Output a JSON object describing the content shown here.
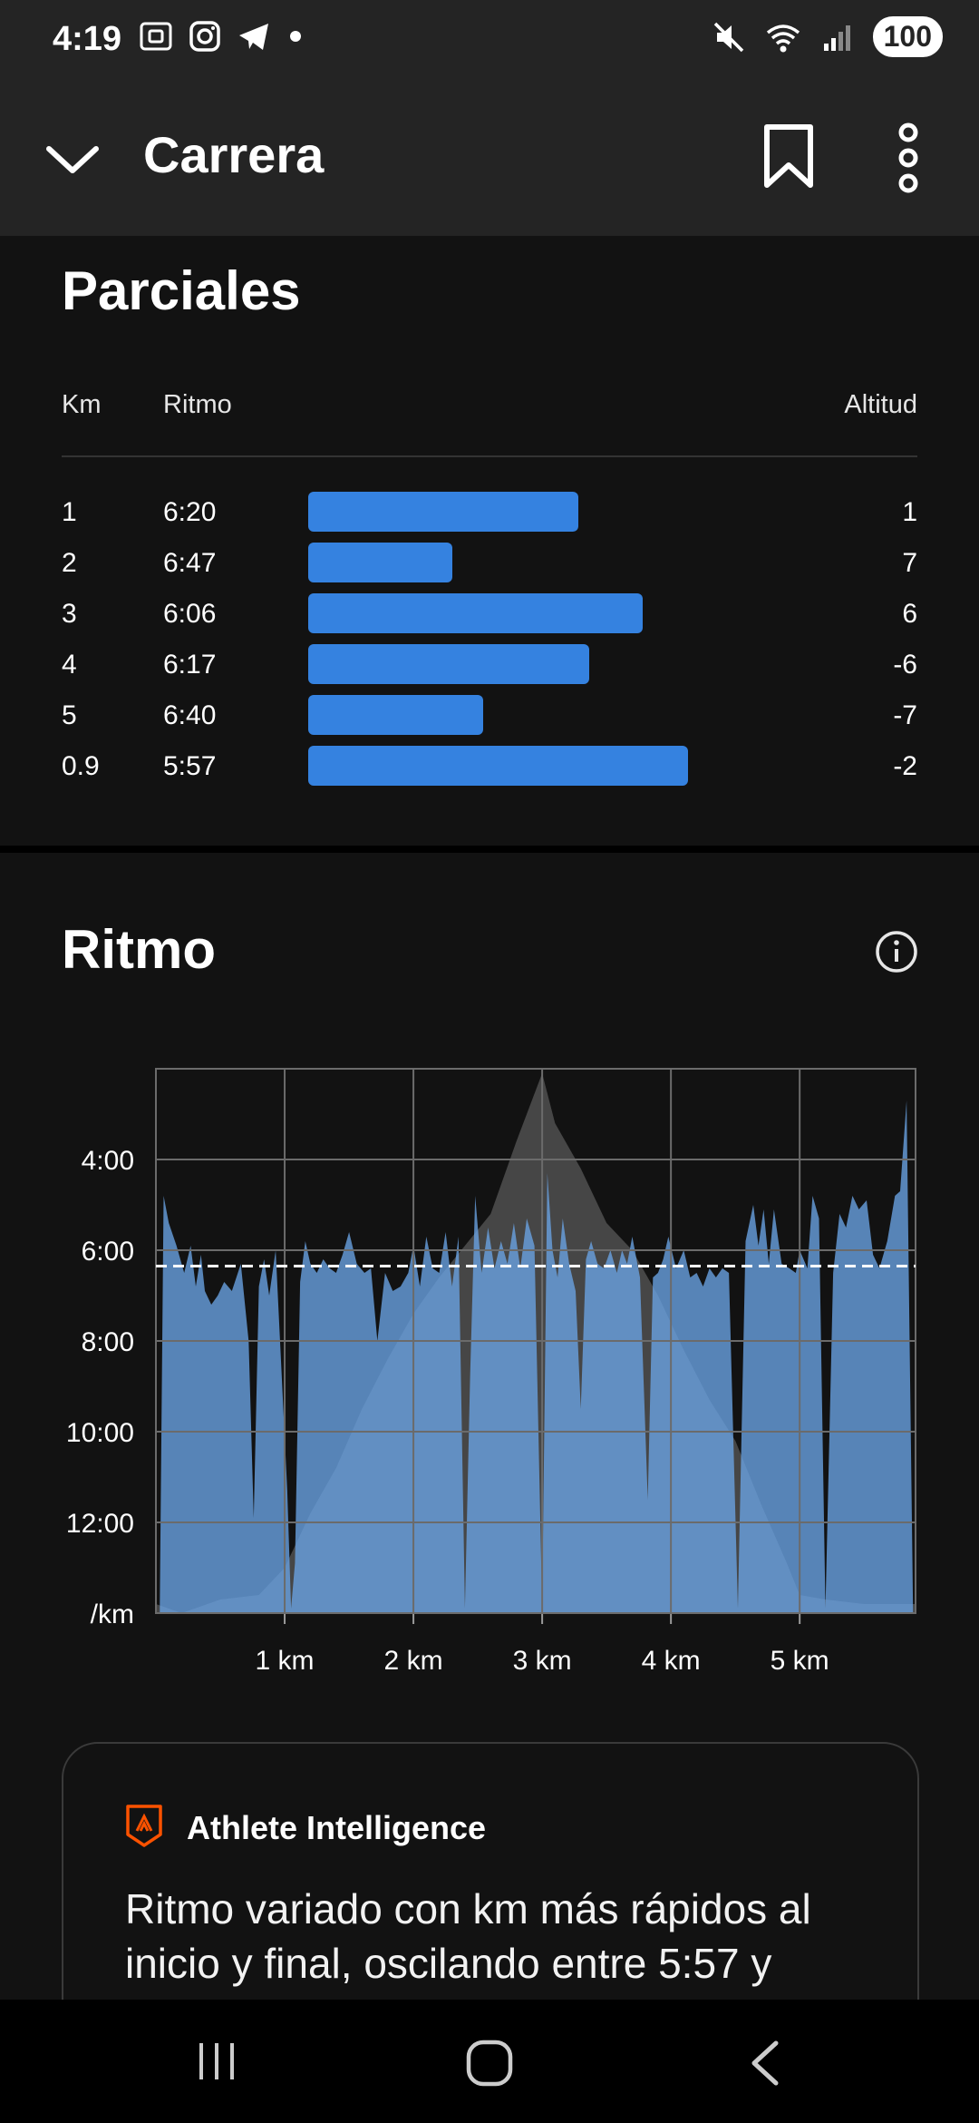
{
  "status_bar": {
    "time": "4:19",
    "battery": "100"
  },
  "app_bar": {
    "title": "Carrera",
    "icons": [
      "chevron-down-icon",
      "bookmark-icon",
      "more-vertical-icon"
    ]
  },
  "splits": {
    "heading": "Parciales",
    "col_km": "Km",
    "col_pace": "Ritmo",
    "col_alt": "Altitud",
    "rows": [
      {
        "km": "1",
        "pace": "6:20",
        "alt": "1",
        "bar_fraction": 0.595
      },
      {
        "km": "2",
        "pace": "6:47",
        "alt": "7",
        "bar_fraction": 0.318
      },
      {
        "km": "3",
        "pace": "6:06",
        "alt": "6",
        "bar_fraction": 0.737
      },
      {
        "km": "4",
        "pace": "6:17",
        "alt": "-6",
        "bar_fraction": 0.62
      },
      {
        "km": "5",
        "pace": "6:40",
        "alt": "-7",
        "bar_fraction": 0.385
      },
      {
        "km": "0.9",
        "pace": "5:57",
        "alt": "-2",
        "bar_fraction": 0.838
      }
    ],
    "bar_color": "#3582e0"
  },
  "pace_section": {
    "heading": "Ritmo",
    "info_icon": "info-icon"
  },
  "chart_data": {
    "type": "area",
    "y_tick_labels": [
      "4:00",
      "6:00",
      "8:00",
      "10:00",
      "12:00",
      "/km"
    ],
    "y_tick_values_min": [
      4,
      6,
      8,
      10,
      12,
      14
    ],
    "x_tick_labels": [
      "1 km",
      "2 km",
      "3 km",
      "4 km",
      "5 km"
    ],
    "x_tick_values_km": [
      1,
      2,
      3,
      4,
      5
    ],
    "xlim_km": [
      0,
      5.9
    ],
    "ylim_min_per_km": [
      2,
      14
    ],
    "y_inverted": true,
    "grid": true,
    "average_pace_min_per_km": 6.35,
    "series": [
      {
        "kind": "pace",
        "color": "#6aa4e6",
        "points": [
          [
            0.03,
            13.8
          ],
          [
            0.06,
            4.8
          ],
          [
            0.1,
            5.4
          ],
          [
            0.16,
            5.9
          ],
          [
            0.22,
            6.5
          ],
          [
            0.27,
            5.9
          ],
          [
            0.31,
            6.8
          ],
          [
            0.35,
            6.1
          ],
          [
            0.38,
            6.9
          ],
          [
            0.43,
            7.2
          ],
          [
            0.48,
            7.0
          ],
          [
            0.53,
            6.7
          ],
          [
            0.59,
            6.9
          ],
          [
            0.66,
            6.3
          ],
          [
            0.72,
            8.0
          ],
          [
            0.76,
            11.9
          ],
          [
            0.8,
            6.8
          ],
          [
            0.84,
            6.2
          ],
          [
            0.88,
            7.0
          ],
          [
            0.93,
            6.0
          ],
          [
            1.02,
            11.3
          ],
          [
            1.05,
            13.9
          ],
          [
            1.08,
            12.9
          ],
          [
            1.12,
            6.7
          ],
          [
            1.16,
            5.8
          ],
          [
            1.2,
            6.3
          ],
          [
            1.25,
            6.5
          ],
          [
            1.3,
            6.2
          ],
          [
            1.35,
            6.4
          ],
          [
            1.4,
            6.5
          ],
          [
            1.45,
            6.1
          ],
          [
            1.5,
            5.6
          ],
          [
            1.56,
            6.3
          ],
          [
            1.62,
            6.5
          ],
          [
            1.67,
            6.4
          ],
          [
            1.72,
            8.0
          ],
          [
            1.78,
            6.5
          ],
          [
            1.84,
            6.9
          ],
          [
            1.9,
            6.8
          ],
          [
            1.96,
            6.5
          ],
          [
            2.0,
            5.9
          ],
          [
            2.05,
            6.8
          ],
          [
            2.1,
            5.7
          ],
          [
            2.15,
            6.4
          ],
          [
            2.2,
            6.5
          ],
          [
            2.25,
            5.6
          ],
          [
            2.3,
            6.8
          ],
          [
            2.35,
            5.7
          ],
          [
            2.4,
            13.9
          ],
          [
            2.44,
            8.8
          ],
          [
            2.48,
            4.8
          ],
          [
            2.53,
            6.5
          ],
          [
            2.58,
            5.5
          ],
          [
            2.63,
            6.4
          ],
          [
            2.68,
            5.8
          ],
          [
            2.73,
            6.3
          ],
          [
            2.78,
            5.4
          ],
          [
            2.83,
            6.4
          ],
          [
            2.88,
            5.3
          ],
          [
            2.94,
            5.9
          ],
          [
            3.0,
            13.9
          ],
          [
            3.04,
            4.3
          ],
          [
            3.08,
            6.0
          ],
          [
            3.12,
            6.6
          ],
          [
            3.16,
            5.3
          ],
          [
            3.21,
            6.3
          ],
          [
            3.26,
            6.9
          ],
          [
            3.3,
            9.5
          ],
          [
            3.34,
            6.2
          ],
          [
            3.38,
            5.8
          ],
          [
            3.43,
            6.3
          ],
          [
            3.48,
            6.4
          ],
          [
            3.53,
            6.0
          ],
          [
            3.58,
            6.5
          ],
          [
            3.62,
            6.0
          ],
          [
            3.66,
            6.3
          ],
          [
            3.7,
            5.7
          ],
          [
            3.76,
            6.6
          ],
          [
            3.82,
            11.5
          ],
          [
            3.86,
            6.6
          ],
          [
            3.9,
            6.5
          ],
          [
            3.94,
            6.2
          ],
          [
            3.98,
            5.7
          ],
          [
            4.04,
            6.4
          ],
          [
            4.1,
            6.0
          ],
          [
            4.15,
            6.6
          ],
          [
            4.2,
            6.5
          ],
          [
            4.25,
            6.8
          ],
          [
            4.3,
            6.4
          ],
          [
            4.35,
            6.6
          ],
          [
            4.4,
            6.4
          ],
          [
            4.45,
            6.5
          ],
          [
            4.52,
            13.9
          ],
          [
            4.58,
            5.8
          ],
          [
            4.64,
            5.0
          ],
          [
            4.68,
            5.9
          ],
          [
            4.72,
            5.1
          ],
          [
            4.76,
            6.3
          ],
          [
            4.8,
            5.1
          ],
          [
            4.86,
            6.3
          ],
          [
            4.92,
            6.4
          ],
          [
            4.97,
            6.5
          ],
          [
            5.0,
            6.0
          ],
          [
            5.06,
            6.4
          ],
          [
            5.1,
            4.8
          ],
          [
            5.15,
            5.3
          ],
          [
            5.2,
            13.9
          ],
          [
            5.26,
            6.5
          ],
          [
            5.31,
            5.2
          ],
          [
            5.36,
            5.5
          ],
          [
            5.41,
            4.8
          ],
          [
            5.46,
            5.1
          ],
          [
            5.52,
            4.9
          ],
          [
            5.57,
            6.1
          ],
          [
            5.62,
            6.4
          ],
          [
            5.68,
            5.8
          ],
          [
            5.74,
            4.8
          ],
          [
            5.78,
            4.7
          ],
          [
            5.83,
            2.7
          ],
          [
            5.88,
            13.9
          ]
        ]
      },
      {
        "kind": "elevation",
        "color": "#4d4d4d",
        "points": [
          [
            0.0,
            13.8
          ],
          [
            0.2,
            14.0
          ],
          [
            0.5,
            13.7
          ],
          [
            0.8,
            13.6
          ],
          [
            1.0,
            13.0
          ],
          [
            1.2,
            11.8
          ],
          [
            1.4,
            10.8
          ],
          [
            1.6,
            9.5
          ],
          [
            1.8,
            8.4
          ],
          [
            2.0,
            7.4
          ],
          [
            2.2,
            6.6
          ],
          [
            2.4,
            5.9
          ],
          [
            2.6,
            5.2
          ],
          [
            2.8,
            3.6
          ],
          [
            3.0,
            2.1
          ],
          [
            3.1,
            3.2
          ],
          [
            3.3,
            4.2
          ],
          [
            3.5,
            5.4
          ],
          [
            3.7,
            6.0
          ],
          [
            3.9,
            7.0
          ],
          [
            4.1,
            8.2
          ],
          [
            4.3,
            9.3
          ],
          [
            4.5,
            10.2
          ],
          [
            4.7,
            11.6
          ],
          [
            4.9,
            12.9
          ],
          [
            5.0,
            13.6
          ],
          [
            5.2,
            13.7
          ],
          [
            5.5,
            13.8
          ],
          [
            5.9,
            13.8
          ]
        ]
      }
    ]
  },
  "ai_card": {
    "title": "Athlete Intelligence",
    "text": "Ritmo variado con km más rápidos al inicio y final, oscilando entre 5:57 y",
    "logo_icon": "strava-logo-icon"
  },
  "nav_bar": {
    "icons": [
      "recent-apps-icon",
      "home-icon",
      "back-icon"
    ]
  }
}
